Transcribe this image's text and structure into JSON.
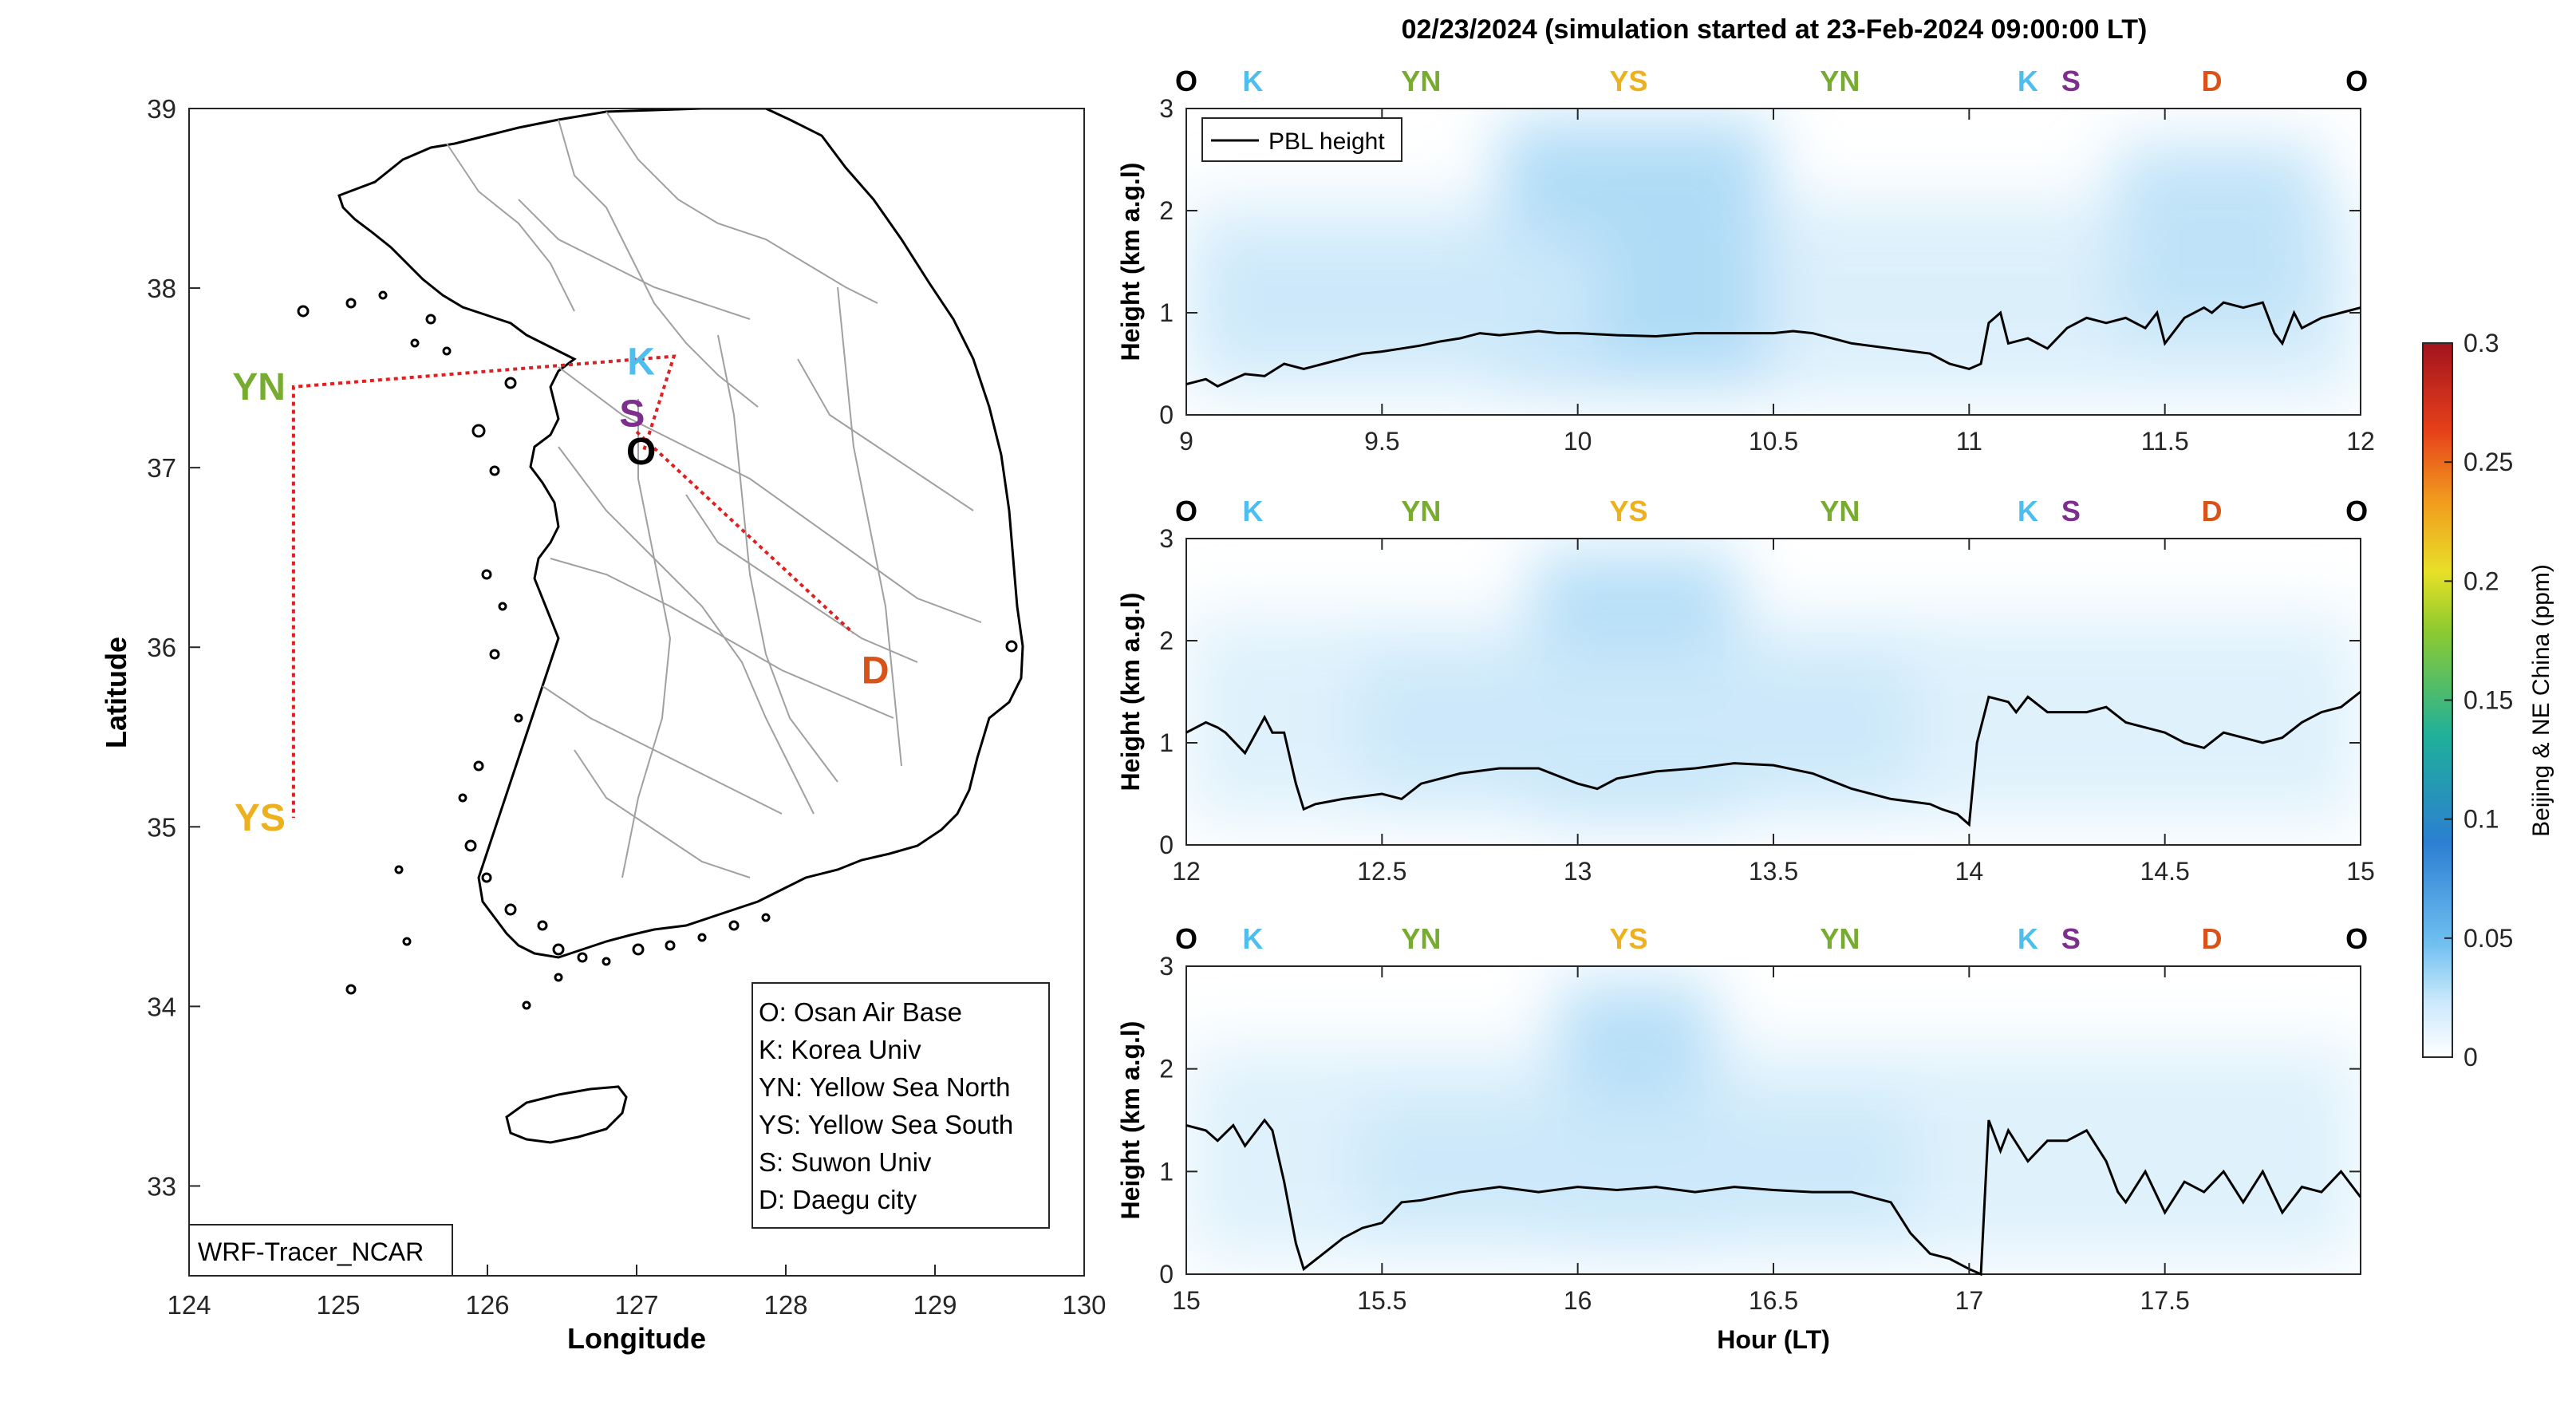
{
  "figure": {
    "title": "02/23/2024 (simulation started at 23-Feb-2024 09:00:00 LT)",
    "colors": {
      "O": "#000000",
      "K": "#4DBEEE",
      "YN": "#77AC30",
      "YS": "#EDB120",
      "S": "#7E2F8E",
      "D": "#D95319",
      "route": "#e02020",
      "pbl": "#000000",
      "plume": "#5ab4e6"
    }
  },
  "chart_data": [
    {
      "type": "map",
      "xlabel": "Longitude",
      "ylabel": "Latitude",
      "xlim": [
        124,
        130
      ],
      "ylim": [
        32.5,
        39
      ],
      "xticks": [
        "124",
        "125",
        "126",
        "127",
        "128",
        "129",
        "130"
      ],
      "yticks": [
        "33",
        "34",
        "35",
        "36",
        "37",
        "38",
        "39"
      ],
      "grid": false,
      "stamp": "WRF-Tracer_NCAR",
      "legend_position": "bottom-right",
      "legend": [
        "O: Osan Air Base",
        "K: Korea Univ",
        "YN: Yellow Sea North",
        "YS: Yellow Sea South",
        "S: Suwon Univ",
        "D: Daegu city"
      ],
      "sites": [
        {
          "label": "O",
          "lon": 127.03,
          "lat": 37.09
        },
        {
          "label": "K",
          "lon": 127.03,
          "lat": 37.59
        },
        {
          "label": "S",
          "lon": 126.97,
          "lat": 37.3
        },
        {
          "label": "YN",
          "lon": 124.7,
          "lat": 37.45
        },
        {
          "label": "YS",
          "lon": 124.7,
          "lat": 35.05
        },
        {
          "label": "D",
          "lon": 128.6,
          "lat": 35.87
        }
      ],
      "route": [
        {
          "lon": 127.05,
          "lat": 37.1
        },
        {
          "lon": 127.25,
          "lat": 37.62
        },
        {
          "lon": 124.7,
          "lat": 37.45
        },
        {
          "lon": 124.7,
          "lat": 35.05
        }
      ],
      "route2": [
        {
          "lon": 127.0,
          "lat": 37.2
        },
        {
          "lon": 128.45,
          "lat": 36.08
        }
      ]
    },
    {
      "type": "line",
      "xlabel": "",
      "ylabel": "Height (km a.g.l)",
      "xlim": [
        9,
        12
      ],
      "ylim": [
        0,
        3
      ],
      "xticks": [
        "9",
        "9.5",
        "10",
        "10.5",
        "11",
        "11.5",
        "12"
      ],
      "yticks": [
        "0",
        "1",
        "2",
        "3"
      ],
      "legend": "PBL height",
      "legend_position": "top-left",
      "site_labels": [
        {
          "label": "O",
          "x": 9.0
        },
        {
          "label": "K",
          "x": 9.17
        },
        {
          "label": "YN",
          "x": 9.6
        },
        {
          "label": "YS",
          "x": 10.13
        },
        {
          "label": "YN",
          "x": 10.67
        },
        {
          "label": "K",
          "x": 11.15
        },
        {
          "label": "S",
          "x": 11.26
        },
        {
          "label": "D",
          "x": 11.62
        },
        {
          "label": "O",
          "x": 11.99
        }
      ],
      "series": [
        {
          "name": "PBL height",
          "x": [
            9.0,
            9.05,
            9.08,
            9.12,
            9.15,
            9.2,
            9.25,
            9.3,
            9.35,
            9.4,
            9.45,
            9.5,
            9.55,
            9.6,
            9.65,
            9.7,
            9.75,
            9.8,
            9.85,
            9.9,
            9.95,
            10.0,
            10.1,
            10.2,
            10.3,
            10.4,
            10.5,
            10.55,
            10.6,
            10.65,
            10.7,
            10.8,
            10.9,
            10.95,
            11.0,
            11.03,
            11.05,
            11.08,
            11.1,
            11.15,
            11.2,
            11.25,
            11.3,
            11.35,
            11.4,
            11.45,
            11.48,
            11.5,
            11.55,
            11.6,
            11.62,
            11.65,
            11.7,
            11.75,
            11.78,
            11.8,
            11.83,
            11.85,
            11.9,
            11.95,
            12.0
          ],
          "y": [
            0.3,
            0.35,
            0.28,
            0.35,
            0.4,
            0.38,
            0.5,
            0.45,
            0.5,
            0.55,
            0.6,
            0.62,
            0.65,
            0.68,
            0.72,
            0.75,
            0.8,
            0.78,
            0.8,
            0.82,
            0.8,
            0.8,
            0.78,
            0.77,
            0.8,
            0.8,
            0.8,
            0.82,
            0.8,
            0.75,
            0.7,
            0.65,
            0.6,
            0.5,
            0.45,
            0.5,
            0.9,
            1.0,
            0.7,
            0.75,
            0.65,
            0.85,
            0.95,
            0.9,
            0.95,
            0.85,
            1.0,
            0.7,
            0.95,
            1.05,
            1.0,
            1.1,
            1.05,
            1.1,
            0.8,
            0.7,
            1.0,
            0.85,
            0.95,
            1.0,
            1.05
          ]
        }
      ]
    },
    {
      "type": "line",
      "xlabel": "",
      "ylabel": "Height (km a.g.l)",
      "xlim": [
        12,
        15
      ],
      "ylim": [
        0,
        3
      ],
      "xticks": [
        "12",
        "12.5",
        "13",
        "13.5",
        "14",
        "14.5",
        "15"
      ],
      "yticks": [
        "0",
        "1",
        "2",
        "3"
      ],
      "site_labels": [
        {
          "label": "O",
          "x": 12.0
        },
        {
          "label": "K",
          "x": 12.17
        },
        {
          "label": "YN",
          "x": 12.6
        },
        {
          "label": "YS",
          "x": 13.13
        },
        {
          "label": "YN",
          "x": 13.67
        },
        {
          "label": "K",
          "x": 14.15
        },
        {
          "label": "S",
          "x": 14.26
        },
        {
          "label": "D",
          "x": 14.62
        },
        {
          "label": "O",
          "x": 14.99
        }
      ],
      "series": [
        {
          "name": "PBL height",
          "x": [
            12.0,
            12.05,
            12.08,
            12.1,
            12.15,
            12.2,
            12.22,
            12.25,
            12.28,
            12.3,
            12.33,
            12.4,
            12.5,
            12.55,
            12.6,
            12.7,
            12.8,
            12.9,
            13.0,
            13.05,
            13.1,
            13.2,
            13.3,
            13.4,
            13.5,
            13.6,
            13.7,
            13.8,
            13.9,
            13.93,
            13.97,
            14.0,
            14.02,
            14.05,
            14.1,
            14.12,
            14.15,
            14.2,
            14.25,
            14.3,
            14.35,
            14.4,
            14.45,
            14.5,
            14.55,
            14.6,
            14.65,
            14.7,
            14.75,
            14.8,
            14.85,
            14.9,
            14.95,
            15.0
          ],
          "y": [
            1.1,
            1.2,
            1.15,
            1.1,
            0.9,
            1.25,
            1.1,
            1.1,
            0.6,
            0.35,
            0.4,
            0.45,
            0.5,
            0.45,
            0.6,
            0.7,
            0.75,
            0.75,
            0.6,
            0.55,
            0.65,
            0.72,
            0.75,
            0.8,
            0.78,
            0.7,
            0.55,
            0.45,
            0.4,
            0.35,
            0.3,
            0.2,
            1.0,
            1.45,
            1.4,
            1.3,
            1.45,
            1.3,
            1.3,
            1.3,
            1.35,
            1.2,
            1.15,
            1.1,
            1.0,
            0.95,
            1.1,
            1.05,
            1.0,
            1.05,
            1.2,
            1.3,
            1.35,
            1.5
          ]
        }
      ]
    },
    {
      "type": "line",
      "xlabel": "Hour (LT)",
      "ylabel": "Height (km a.g.l)",
      "xlim": [
        15,
        18
      ],
      "ylim": [
        0,
        3
      ],
      "xticks": [
        "15",
        "15.5",
        "16",
        "16.5",
        "17",
        "17.5"
      ],
      "yticks": [
        "0",
        "1",
        "2",
        "3"
      ],
      "site_labels": [
        {
          "label": "O",
          "x": 15.0
        },
        {
          "label": "K",
          "x": 15.17
        },
        {
          "label": "YN",
          "x": 15.6
        },
        {
          "label": "YS",
          "x": 16.13
        },
        {
          "label": "YN",
          "x": 16.67
        },
        {
          "label": "K",
          "x": 17.15
        },
        {
          "label": "S",
          "x": 17.26
        },
        {
          "label": "D",
          "x": 17.62
        },
        {
          "label": "O",
          "x": 17.99
        }
      ],
      "series": [
        {
          "name": "PBL height",
          "x": [
            15.0,
            15.05,
            15.08,
            15.12,
            15.15,
            15.2,
            15.22,
            15.25,
            15.28,
            15.3,
            15.35,
            15.4,
            15.45,
            15.5,
            15.55,
            15.6,
            15.7,
            15.8,
            15.9,
            16.0,
            16.1,
            16.2,
            16.3,
            16.4,
            16.5,
            16.6,
            16.7,
            16.8,
            16.85,
            16.9,
            16.95,
            17.0,
            17.03,
            17.05,
            17.08,
            17.1,
            17.15,
            17.2,
            17.25,
            17.3,
            17.35,
            17.38,
            17.4,
            17.45,
            17.5,
            17.55,
            17.6,
            17.65,
            17.7,
            17.75,
            17.8,
            17.85,
            17.9,
            17.95,
            18.0
          ],
          "y": [
            1.45,
            1.4,
            1.3,
            1.45,
            1.25,
            1.5,
            1.4,
            0.9,
            0.3,
            0.05,
            0.2,
            0.35,
            0.45,
            0.5,
            0.7,
            0.72,
            0.8,
            0.85,
            0.8,
            0.85,
            0.82,
            0.85,
            0.8,
            0.85,
            0.82,
            0.8,
            0.8,
            0.7,
            0.4,
            0.2,
            0.15,
            0.05,
            0.0,
            1.5,
            1.2,
            1.4,
            1.1,
            1.3,
            1.3,
            1.4,
            1.1,
            0.8,
            0.7,
            1.0,
            0.6,
            0.9,
            0.8,
            1.0,
            0.7,
            1.0,
            0.6,
            0.85,
            0.8,
            1.0,
            0.75
          ]
        }
      ]
    },
    {
      "type": "heatmap",
      "ylabel": "Beijing & NE China (ppm)",
      "ylim": [
        0,
        0.3
      ],
      "yticks": [
        "0",
        "0.05",
        "0.1",
        "0.15",
        "0.2",
        "0.25",
        "0.3"
      ],
      "colormap": "jet (white at 0)"
    }
  ]
}
